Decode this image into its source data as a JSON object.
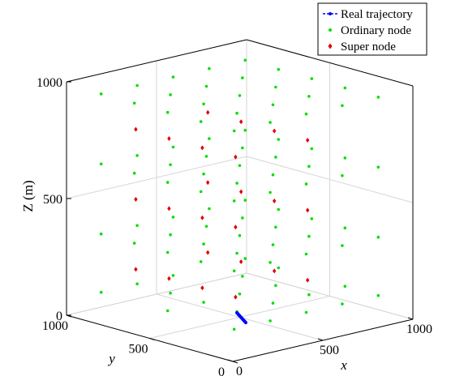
{
  "chart_data": {
    "type": "scatter",
    "dimensions": 3,
    "title": "",
    "xlabel": "x",
    "ylabel": "y",
    "zlabel": "Z (m)",
    "xlim": [
      0,
      1000
    ],
    "ylim": [
      0,
      1000
    ],
    "zlim": [
      0,
      1000
    ],
    "x_ticks": [
      {
        "v": 0,
        "label": "0"
      },
      {
        "v": 500,
        "label": "500"
      },
      {
        "v": 1000,
        "label": "1000"
      }
    ],
    "y_ticks": [
      {
        "v": 0,
        "label": "0"
      },
      {
        "v": 500,
        "label": "500"
      },
      {
        "v": 1000,
        "label": "1000"
      }
    ],
    "z_ticks": [
      {
        "v": 0,
        "label": "0"
      },
      {
        "v": 500,
        "label": "500"
      },
      {
        "v": 1000,
        "label": "1000"
      }
    ],
    "grid": true,
    "box": true,
    "view": "3-D perspective, x axis to lower-right, y axis to lower-left",
    "legend_position": "top-right",
    "legend": [
      {
        "label": "Real trajectory",
        "color": "#0000ff",
        "marker": "line-dot"
      },
      {
        "label": "Ordinary node",
        "color": "#00e000",
        "marker": "dot"
      },
      {
        "label": "Super node",
        "color": "#e00000",
        "marker": "diamond"
      }
    ],
    "series": [
      {
        "name": "Real trajectory",
        "kind": "line",
        "color": "#0000ff",
        "points": [
          [
            540,
            560,
            0
          ],
          [
            460,
            420,
            0
          ]
        ]
      },
      {
        "name": "Ordinary node",
        "kind": "scatter",
        "color": "#00e000",
        "points": [
          [
            100,
            900,
            950
          ],
          [
            100,
            900,
            650
          ],
          [
            100,
            900,
            350
          ],
          [
            100,
            900,
            100
          ],
          [
            100,
            700,
            950
          ],
          [
            100,
            700,
            650
          ],
          [
            100,
            700,
            350
          ],
          [
            100,
            500,
            950
          ],
          [
            100,
            500,
            650
          ],
          [
            100,
            500,
            350
          ],
          [
            100,
            500,
            100
          ],
          [
            100,
            300,
            950
          ],
          [
            100,
            300,
            650
          ],
          [
            100,
            300,
            350
          ],
          [
            100,
            100,
            950
          ],
          [
            100,
            100,
            650
          ],
          [
            100,
            100,
            350
          ],
          [
            100,
            100,
            100
          ],
          [
            300,
            900,
            950
          ],
          [
            300,
            900,
            650
          ],
          [
            300,
            900,
            350
          ],
          [
            300,
            900,
            100
          ],
          [
            300,
            700,
            950
          ],
          [
            300,
            700,
            650
          ],
          [
            300,
            700,
            350
          ],
          [
            300,
            700,
            100
          ],
          [
            300,
            500,
            950
          ],
          [
            300,
            500,
            650
          ],
          [
            300,
            500,
            350
          ],
          [
            300,
            500,
            100
          ],
          [
            300,
            300,
            950
          ],
          [
            300,
            300,
            650
          ],
          [
            300,
            300,
            350
          ],
          [
            300,
            300,
            100
          ],
          [
            300,
            100,
            950
          ],
          [
            300,
            100,
            650
          ],
          [
            300,
            100,
            350
          ],
          [
            300,
            100,
            100
          ],
          [
            500,
            900,
            950
          ],
          [
            500,
            900,
            650
          ],
          [
            500,
            900,
            350
          ],
          [
            500,
            900,
            100
          ],
          [
            500,
            700,
            950
          ],
          [
            500,
            700,
            650
          ],
          [
            500,
            700,
            350
          ],
          [
            500,
            500,
            950
          ],
          [
            500,
            500,
            650
          ],
          [
            500,
            500,
            350
          ],
          [
            500,
            500,
            100
          ],
          [
            500,
            300,
            950
          ],
          [
            500,
            300,
            650
          ],
          [
            500,
            300,
            350
          ],
          [
            500,
            300,
            100
          ],
          [
            500,
            100,
            950
          ],
          [
            500,
            100,
            650
          ],
          [
            500,
            100,
            350
          ],
          [
            500,
            100,
            100
          ],
          [
            700,
            900,
            950
          ],
          [
            700,
            900,
            650
          ],
          [
            700,
            900,
            350
          ],
          [
            700,
            700,
            950
          ],
          [
            700,
            700,
            650
          ],
          [
            700,
            700,
            350
          ],
          [
            700,
            700,
            100
          ],
          [
            700,
            500,
            950
          ],
          [
            700,
            500,
            650
          ],
          [
            700,
            500,
            350
          ],
          [
            700,
            500,
            100
          ],
          [
            700,
            300,
            950
          ],
          [
            700,
            300,
            650
          ],
          [
            700,
            300,
            350
          ],
          [
            700,
            300,
            100
          ],
          [
            700,
            100,
            950
          ],
          [
            700,
            100,
            650
          ],
          [
            700,
            100,
            350
          ],
          [
            700,
            100,
            100
          ],
          [
            900,
            900,
            950
          ],
          [
            900,
            900,
            650
          ],
          [
            900,
            900,
            350
          ],
          [
            900,
            900,
            100
          ],
          [
            900,
            700,
            950
          ],
          [
            900,
            700,
            650
          ],
          [
            900,
            700,
            350
          ],
          [
            900,
            700,
            100
          ],
          [
            900,
            500,
            950
          ],
          [
            900,
            500,
            650
          ],
          [
            900,
            500,
            350
          ],
          [
            900,
            300,
            950
          ],
          [
            900,
            300,
            650
          ],
          [
            900,
            300,
            350
          ],
          [
            900,
            300,
            100
          ],
          [
            900,
            100,
            950
          ],
          [
            900,
            100,
            650
          ],
          [
            900,
            100,
            350
          ],
          [
            900,
            100,
            100
          ]
        ]
      },
      {
        "name": "Super node",
        "kind": "scatter",
        "color": "#e00000",
        "points": [
          [
            200,
            800,
            800
          ],
          [
            200,
            800,
            500
          ],
          [
            200,
            800,
            200
          ],
          [
            200,
            600,
            800
          ],
          [
            200,
            600,
            500
          ],
          [
            200,
            600,
            200
          ],
          [
            200,
            400,
            800
          ],
          [
            200,
            400,
            500
          ],
          [
            200,
            400,
            200
          ],
          [
            200,
            200,
            800
          ],
          [
            200,
            200,
            500
          ],
          [
            200,
            200,
            200
          ],
          [
            600,
            800,
            800
          ],
          [
            600,
            800,
            500
          ],
          [
            600,
            800,
            200
          ],
          [
            600,
            600,
            800
          ],
          [
            600,
            600,
            500
          ],
          [
            600,
            600,
            200
          ],
          [
            600,
            400,
            800
          ],
          [
            600,
            400,
            500
          ],
          [
            600,
            400,
            200
          ],
          [
            600,
            200,
            800
          ],
          [
            600,
            200,
            500
          ],
          [
            600,
            200,
            200
          ]
        ]
      }
    ]
  }
}
